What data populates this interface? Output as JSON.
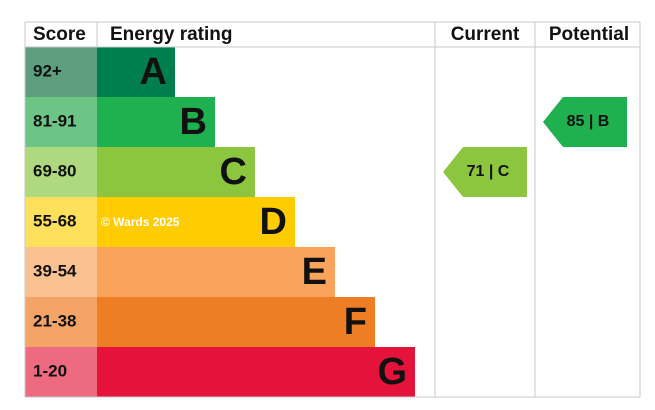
{
  "header": {
    "score": "Score",
    "rating": "Energy rating",
    "current": "Current",
    "potential": "Potential"
  },
  "bands": [
    {
      "score": "92+",
      "letter": "A",
      "color": "#007f4e",
      "tint": "#5c9e7e"
    },
    {
      "score": "81-91",
      "letter": "B",
      "color": "#1fb14f",
      "tint": "#6cc585"
    },
    {
      "score": "69-80",
      "letter": "C",
      "color": "#8cc63f",
      "tint": "#afd97f"
    },
    {
      "score": "55-68",
      "letter": "D",
      "color": "#ffcc00",
      "tint": "#ffe05c"
    },
    {
      "score": "39-54",
      "letter": "E",
      "color": "#f9a35c",
      "tint": "#fbc291"
    },
    {
      "score": "21-38",
      "letter": "F",
      "color": "#ef7d23",
      "tint": "#f5a468"
    },
    {
      "score": "1-20",
      "letter": "G",
      "color": "#e5133b",
      "tint": "#ee6a80"
    }
  ],
  "watermark": "© Wards 2025",
  "current": "71 | C",
  "potential": "85 | B"
}
